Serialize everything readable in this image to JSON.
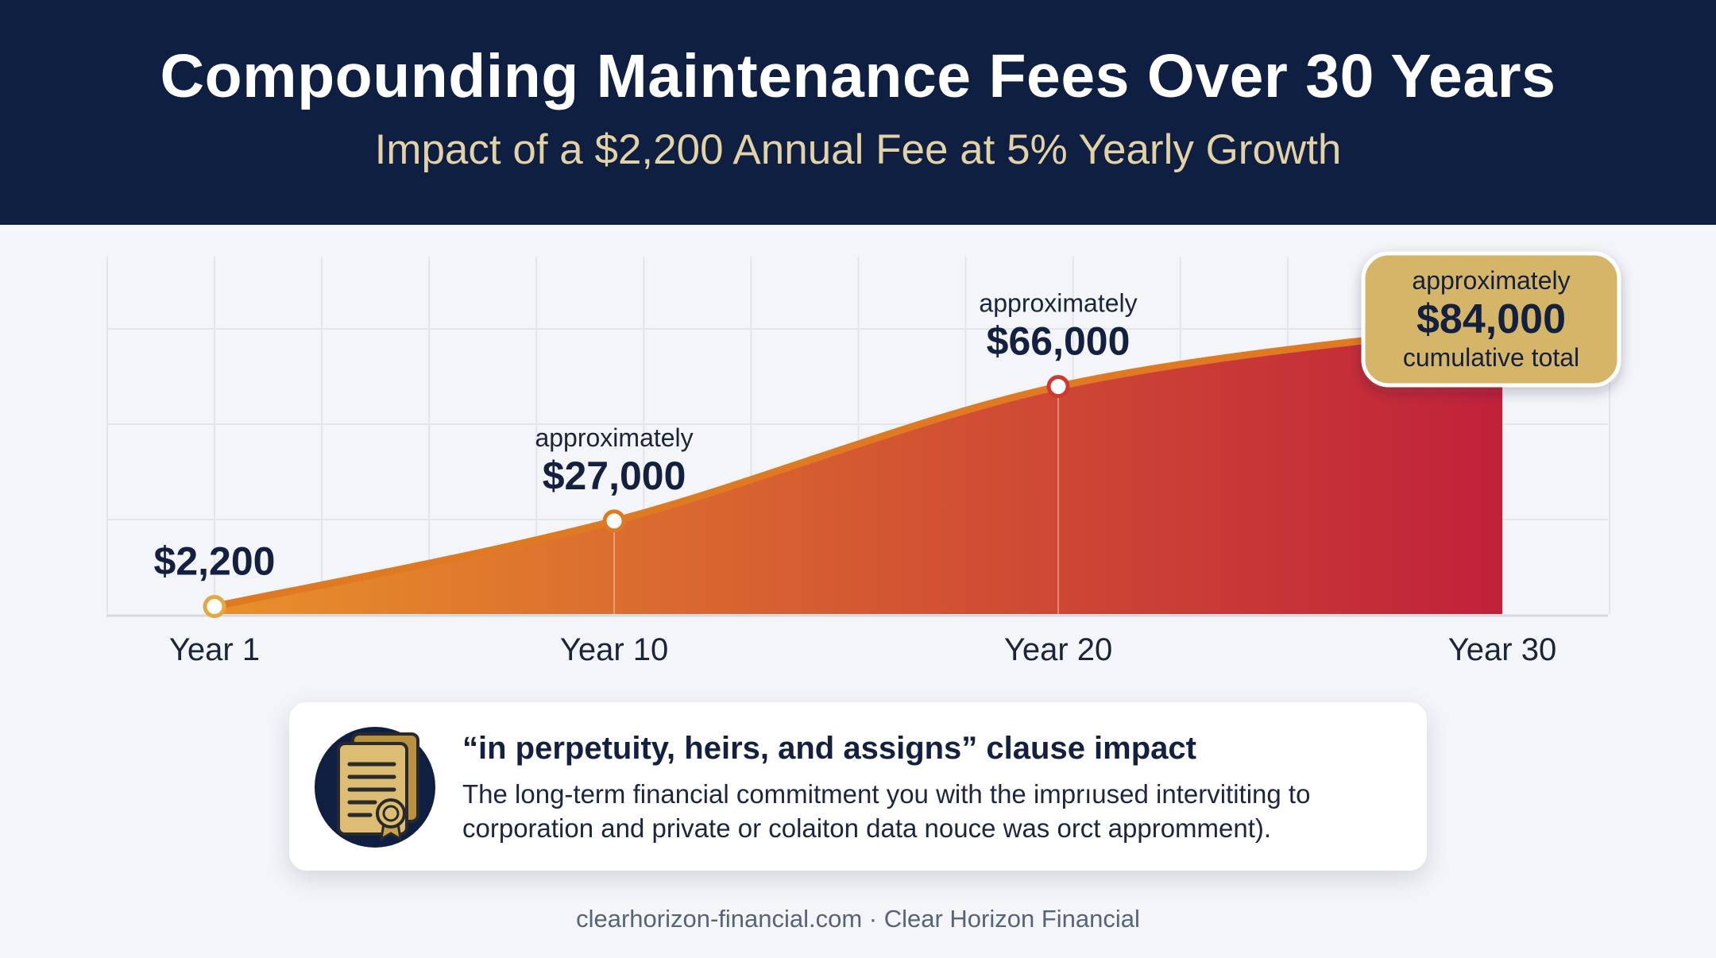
{
  "header": {
    "title": "Compounding Maintenance Fees Over 30 Years",
    "subtitle": "Impact of a $2,200 Annual Fee at 5% Yearly Growth"
  },
  "chart_data": {
    "type": "area",
    "x": [
      1,
      10,
      20,
      30
    ],
    "values": [
      2200,
      27000,
      66000,
      84000
    ],
    "xlim": [
      1,
      30
    ],
    "ylim": [
      0,
      106000
    ],
    "x_tick_labels": [
      "Year 1",
      "Year 10",
      "Year 20",
      "Year 30"
    ],
    "grid": true,
    "annotations": [
      {
        "x": 1,
        "prefix": "",
        "value_label": "$2,200"
      },
      {
        "x": 10,
        "prefix": "approximately",
        "value_label": "$27,000"
      },
      {
        "x": 20,
        "prefix": "approximately",
        "value_label": "$66,000"
      }
    ],
    "callout": {
      "x": 30,
      "prefix": "approximately",
      "value_label": "$84,000",
      "suffix": "cumulative total"
    },
    "colors": {
      "fill_start": "#e8902a",
      "fill_end": "#c0213a",
      "line": "#e07a22",
      "callout_bg": "#d5b567"
    }
  },
  "info_card": {
    "icon": "certificate-document-icon",
    "heading": "“in perpetuity, heirs, and assigns” clause impact",
    "body_line1": "The long-term financial commitment you with the imprıused intervititing to",
    "body_line2": "corporation and private or colaiton data nouce was orct appromment)."
  },
  "footer": {
    "text": "clearhorizon-financial.com · Clear Horizon Financial"
  }
}
